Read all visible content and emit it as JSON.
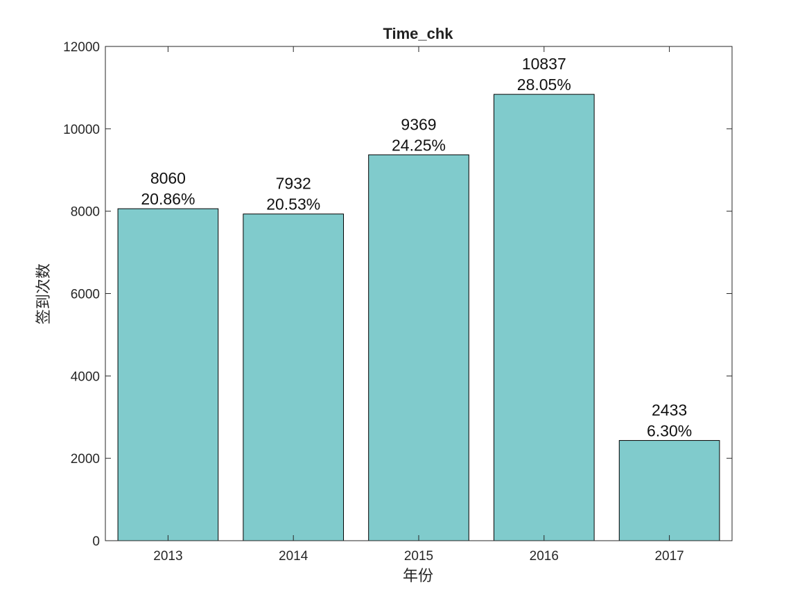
{
  "chart_data": {
    "type": "bar",
    "title": "Time_chk",
    "xlabel": "年份",
    "ylabel": "签到次数",
    "categories": [
      "2013",
      "2014",
      "2015",
      "2016",
      "2017"
    ],
    "values": [
      8060,
      7932,
      9369,
      10837,
      2433
    ],
    "percent_labels": [
      "20.86%",
      "20.53%",
      "24.25%",
      "28.05%",
      "6.30%"
    ],
    "ylim": [
      0,
      12000
    ],
    "yticks": [
      0,
      2000,
      4000,
      6000,
      8000,
      10000,
      12000
    ],
    "ytick_labels": [
      "0",
      "2000",
      "4000",
      "6000",
      "8000",
      "10000",
      "12000"
    ],
    "bar_color": "#80cbcc",
    "bar_edge_color": "#000000",
    "grid": false,
    "legend": false
  }
}
